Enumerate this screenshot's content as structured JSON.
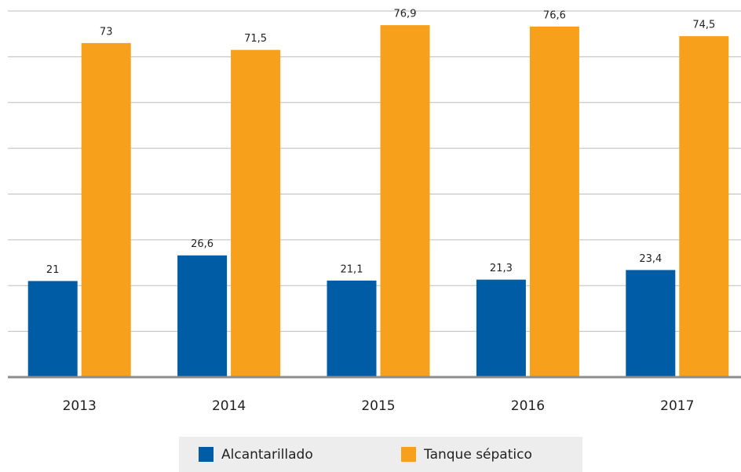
{
  "chart_data": {
    "type": "bar",
    "categories": [
      "2013",
      "2014",
      "2015",
      "2016",
      "2017"
    ],
    "series": [
      {
        "name": "Alcantarillado",
        "color": "#005ca4",
        "values": [
          21,
          26.6,
          21.1,
          21.3,
          23.4
        ],
        "value_labels": [
          "21",
          "26,6",
          "21,1",
          "21,3",
          "23,4"
        ]
      },
      {
        "name": "Tanque sépatico",
        "color": "#f6a01c",
        "values": [
          73,
          71.5,
          76.9,
          76.6,
          74.5
        ],
        "value_labels": [
          "73",
          "71,5",
          "76,9",
          "76,6",
          "74,5"
        ]
      }
    ],
    "ylim": [
      0,
      80
    ],
    "yticks": [
      0,
      10,
      20,
      30,
      40,
      50,
      60,
      70,
      80
    ],
    "grid": true,
    "legend": "bottom"
  }
}
